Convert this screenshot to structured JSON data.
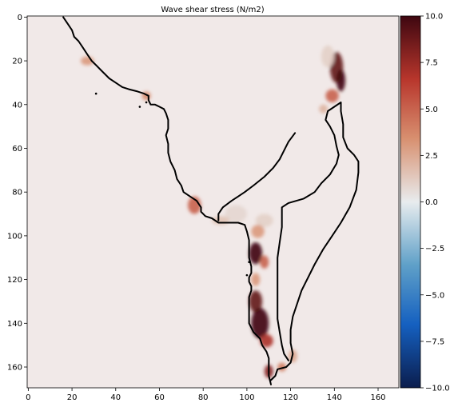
{
  "chart_data": {
    "type": "heatmap",
    "title": "Wave shear stress (N/m2)",
    "xlabel": "",
    "ylabel": "",
    "xlim": [
      -0.5,
      169.5
    ],
    "ylim": [
      169.5,
      -0.5
    ],
    "x_ticks": [
      0,
      20,
      40,
      60,
      80,
      100,
      120,
      140,
      160
    ],
    "y_ticks": [
      0,
      20,
      40,
      60,
      80,
      100,
      120,
      140,
      160
    ],
    "colorbar": {
      "min": -10.0,
      "max": 10.0,
      "ticks": [
        10.0,
        7.5,
        5.0,
        2.5,
        0.0,
        -2.5,
        -5.0,
        -7.5,
        -10.0
      ],
      "tick_labels": [
        "10.0",
        "7.5",
        "5.0",
        "2.5",
        "0.0",
        "−2.5",
        "−5.0",
        "−7.5",
        "−10.0"
      ],
      "colormap": "RdBu_r-like (dark blue → white → dark red)",
      "colors": [
        "#0b1d4d",
        "#1560c0",
        "#5fa0c8",
        "#e8ecee",
        "#d89070",
        "#b8362c",
        "#3e0710"
      ]
    },
    "background_value": 0.2,
    "background_color": "#f1e9e8",
    "coastline": {
      "color": "#000000",
      "outer": [
        [
          16,
          0
        ],
        [
          18,
          3
        ],
        [
          20,
          6
        ],
        [
          21,
          9
        ],
        [
          23,
          11
        ],
        [
          25,
          14
        ],
        [
          27,
          17
        ],
        [
          29,
          20
        ],
        [
          31,
          22
        ],
        [
          33,
          24
        ],
        [
          35,
          26
        ],
        [
          37,
          28
        ],
        [
          40,
          30
        ],
        [
          43,
          32
        ],
        [
          46,
          33
        ],
        [
          50,
          34
        ],
        [
          53,
          35
        ],
        [
          55,
          36
        ],
        [
          55,
          38
        ],
        [
          56,
          40
        ],
        [
          58,
          40
        ],
        [
          60,
          41
        ],
        [
          62,
          42
        ],
        [
          63,
          44
        ],
        [
          64,
          47
        ],
        [
          64,
          51
        ],
        [
          63,
          54
        ],
        [
          64,
          58
        ],
        [
          64,
          62
        ],
        [
          65,
          66
        ],
        [
          67,
          70
        ],
        [
          68,
          74
        ],
        [
          70,
          77
        ],
        [
          71,
          80
        ],
        [
          74,
          82
        ],
        [
          77,
          84
        ],
        [
          79,
          87
        ],
        [
          79,
          89
        ],
        [
          81,
          91
        ],
        [
          84,
          92
        ],
        [
          87,
          94
        ],
        [
          92,
          94
        ],
        [
          96,
          94
        ],
        [
          99,
          95
        ],
        [
          100,
          98
        ],
        [
          101,
          102
        ],
        [
          101,
          106
        ],
        [
          101,
          110
        ],
        [
          102,
          114
        ],
        [
          102,
          117
        ],
        [
          101,
          119
        ],
        [
          101,
          121
        ],
        [
          102,
          123
        ],
        [
          102,
          125
        ],
        [
          101,
          128
        ],
        [
          101,
          132
        ],
        [
          101,
          136
        ],
        [
          101,
          140
        ],
        [
          103,
          144
        ],
        [
          106,
          147
        ],
        [
          107,
          150
        ],
        [
          109,
          153
        ],
        [
          110,
          156
        ],
        [
          110,
          160
        ],
        [
          110,
          164
        ],
        [
          111,
          168
        ]
      ],
      "inner": [
        [
          122,
          53
        ],
        [
          119,
          57
        ],
        [
          117,
          61
        ],
        [
          115,
          65
        ],
        [
          112,
          69
        ],
        [
          108,
          73
        ],
        [
          103,
          77
        ],
        [
          99,
          80
        ],
        [
          96,
          82
        ],
        [
          93,
          84
        ],
        [
          89,
          87
        ],
        [
          87,
          90
        ],
        [
          87,
          93
        ]
      ],
      "peninsula": [
        [
          111,
          166
        ],
        [
          113,
          164
        ],
        [
          114,
          161
        ],
        [
          118,
          160
        ],
        [
          120,
          158
        ],
        [
          121,
          154
        ],
        [
          120,
          149
        ],
        [
          120,
          143
        ],
        [
          121,
          137
        ],
        [
          123,
          131
        ],
        [
          125,
          125
        ],
        [
          128,
          119
        ],
        [
          131,
          113
        ],
        [
          135,
          106
        ],
        [
          139,
          100
        ],
        [
          143,
          94
        ],
        [
          147,
          87
        ],
        [
          150,
          79
        ],
        [
          151,
          71
        ],
        [
          151,
          66
        ],
        [
          149,
          63
        ],
        [
          146,
          60
        ],
        [
          144,
          55
        ],
        [
          144,
          49
        ],
        [
          143,
          43
        ],
        [
          143,
          39
        ],
        [
          140,
          41
        ],
        [
          137,
          43
        ],
        [
          136,
          47
        ],
        [
          138,
          50
        ],
        [
          140,
          54
        ],
        [
          141,
          59
        ],
        [
          142,
          63
        ],
        [
          141,
          67
        ],
        [
          138,
          72
        ],
        [
          134,
          76
        ],
        [
          131,
          80
        ],
        [
          126,
          83
        ],
        [
          119,
          85
        ],
        [
          116,
          87
        ],
        [
          116,
          91
        ],
        [
          116,
          96
        ],
        [
          115,
          103
        ],
        [
          114,
          110
        ],
        [
          114,
          117
        ],
        [
          114,
          124
        ],
        [
          114,
          131
        ],
        [
          114,
          138
        ],
        [
          115,
          144
        ],
        [
          116,
          150
        ],
        [
          117,
          154
        ],
        [
          119,
          157
        ]
      ]
    },
    "hotspots": [
      {
        "x": 141,
        "y": 23,
        "rx": 3,
        "ry": 7,
        "value": 9.0
      },
      {
        "x": 143,
        "y": 29,
        "rx": 2,
        "ry": 5,
        "value": 10.0
      },
      {
        "x": 139,
        "y": 36,
        "rx": 3,
        "ry": 3,
        "value": 5.0
      },
      {
        "x": 137,
        "y": 18,
        "rx": 3,
        "ry": 5,
        "value": 1.0
      },
      {
        "x": 135,
        "y": 42,
        "rx": 2,
        "ry": 2,
        "value": 2.0
      },
      {
        "x": 54,
        "y": 36,
        "rx": 2,
        "ry": 2,
        "value": 3.5
      },
      {
        "x": 27,
        "y": 20,
        "rx": 3,
        "ry": 2,
        "value": 3.0
      },
      {
        "x": 76,
        "y": 86,
        "rx": 3,
        "ry": 4,
        "value": 5.0
      },
      {
        "x": 95,
        "y": 90,
        "rx": 5,
        "ry": 4,
        "value": 0.8
      },
      {
        "x": 88,
        "y": 93,
        "rx": 4,
        "ry": 2,
        "value": 1.5
      },
      {
        "x": 108,
        "y": 93,
        "rx": 4,
        "ry": 3,
        "value": 1.0
      },
      {
        "x": 105,
        "y": 98,
        "rx": 3,
        "ry": 3,
        "value": 3.0
      },
      {
        "x": 104,
        "y": 108,
        "rx": 3,
        "ry": 5,
        "value": 10.0
      },
      {
        "x": 108,
        "y": 112,
        "rx": 2,
        "ry": 3,
        "value": 5.0
      },
      {
        "x": 104,
        "y": 120,
        "rx": 2,
        "ry": 3,
        "value": 3.0
      },
      {
        "x": 104,
        "y": 130,
        "rx": 3,
        "ry": 5,
        "value": 9.0
      },
      {
        "x": 106,
        "y": 140,
        "rx": 4,
        "ry": 7,
        "value": 10.0
      },
      {
        "x": 109,
        "y": 148,
        "rx": 3,
        "ry": 3,
        "value": 7.0
      },
      {
        "x": 110,
        "y": 162,
        "rx": 2,
        "ry": 3,
        "value": 8.0
      },
      {
        "x": 116,
        "y": 160,
        "rx": 2,
        "ry": 2,
        "value": 4.0
      },
      {
        "x": 121,
        "y": 155,
        "rx": 2,
        "ry": 3,
        "value": 2.5
      }
    ],
    "islets": [
      [
        31,
        35
      ],
      [
        51,
        41
      ],
      [
        54,
        39
      ],
      [
        101,
        112
      ],
      [
        100,
        118
      ]
    ]
  }
}
